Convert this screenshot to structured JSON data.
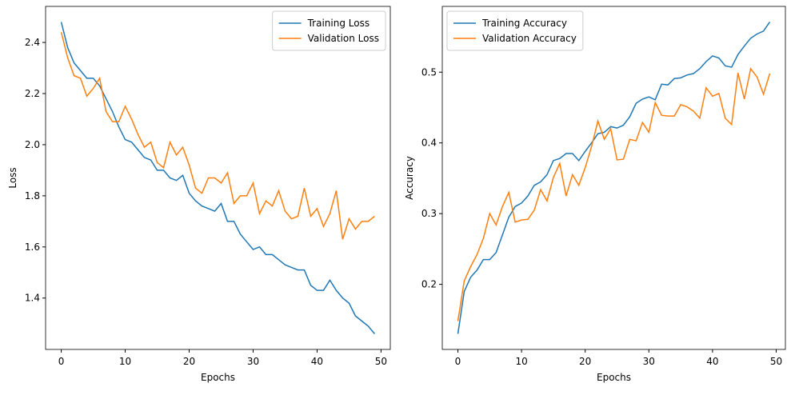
{
  "chart_data": [
    {
      "type": "line",
      "x_label": "Epochs",
      "y_label": "Loss",
      "x": [
        0,
        1,
        2,
        3,
        4,
        5,
        6,
        7,
        8,
        9,
        10,
        11,
        12,
        13,
        14,
        15,
        16,
        17,
        18,
        19,
        20,
        21,
        22,
        23,
        24,
        25,
        26,
        27,
        28,
        29,
        30,
        31,
        32,
        33,
        34,
        35,
        36,
        37,
        38,
        39,
        40,
        41,
        42,
        43,
        44,
        45,
        46,
        47,
        48,
        49
      ],
      "series": [
        {
          "name": "Training Loss",
          "color": "#1f77b4",
          "values": [
            2.48,
            2.38,
            2.32,
            2.29,
            2.26,
            2.26,
            2.23,
            2.18,
            2.13,
            2.07,
            2.02,
            2.01,
            1.98,
            1.95,
            1.94,
            1.9,
            1.9,
            1.87,
            1.86,
            1.88,
            1.81,
            1.78,
            1.76,
            1.75,
            1.74,
            1.77,
            1.7,
            1.7,
            1.65,
            1.62,
            1.59,
            1.6,
            1.57,
            1.57,
            1.55,
            1.53,
            1.52,
            1.51,
            1.51,
            1.45,
            1.43,
            1.43,
            1.47,
            1.43,
            1.4,
            1.38,
            1.33,
            1.31,
            1.29,
            1.26
          ]
        },
        {
          "name": "Validation Loss",
          "color": "#ff7f0e",
          "values": [
            2.44,
            2.34,
            2.27,
            2.26,
            2.19,
            2.22,
            2.26,
            2.13,
            2.09,
            2.09,
            2.15,
            2.1,
            2.04,
            1.99,
            2.01,
            1.93,
            1.91,
            2.01,
            1.96,
            1.99,
            1.92,
            1.83,
            1.81,
            1.87,
            1.87,
            1.85,
            1.89,
            1.77,
            1.8,
            1.8,
            1.85,
            1.73,
            1.78,
            1.76,
            1.82,
            1.74,
            1.71,
            1.72,
            1.83,
            1.72,
            1.75,
            1.68,
            1.73,
            1.82,
            1.63,
            1.71,
            1.67,
            1.7,
            1.7,
            1.72
          ]
        }
      ],
      "xlim": [
        -2.45,
        51.45
      ],
      "xticks": [
        0,
        10,
        20,
        30,
        40,
        50
      ],
      "ylim": [
        1.199,
        2.541
      ],
      "yticks": [
        1.4,
        1.6,
        1.8,
        {
          "value": 2,
          "label": "2.0"
        },
        2.2,
        2.4
      ],
      "legend": "upper right"
    },
    {
      "type": "line",
      "x_label": "Epochs",
      "y_label": "Accuracy",
      "x": [
        0,
        1,
        2,
        3,
        4,
        5,
        6,
        7,
        8,
        9,
        10,
        11,
        12,
        13,
        14,
        15,
        16,
        17,
        18,
        19,
        20,
        21,
        22,
        23,
        24,
        25,
        26,
        27,
        28,
        29,
        30,
        31,
        32,
        33,
        34,
        35,
        36,
        37,
        38,
        39,
        40,
        41,
        42,
        43,
        44,
        45,
        46,
        47,
        48,
        49
      ],
      "series": [
        {
          "name": "Training Accuracy",
          "color": "#1f77b4",
          "values": [
            0.13,
            0.19,
            0.21,
            0.22,
            0.235,
            0.235,
            0.245,
            0.27,
            0.295,
            0.31,
            0.315,
            0.325,
            0.34,
            0.345,
            0.355,
            0.375,
            0.378,
            0.385,
            0.385,
            0.375,
            0.388,
            0.4,
            0.413,
            0.415,
            0.423,
            0.421,
            0.425,
            0.437,
            0.456,
            0.462,
            0.465,
            0.461,
            0.483,
            0.482,
            0.491,
            0.492,
            0.496,
            0.498,
            0.505,
            0.515,
            0.523,
            0.52,
            0.509,
            0.507,
            0.525,
            0.537,
            0.548,
            0.554,
            0.558,
            0.571
          ]
        },
        {
          "name": "Validation Accuracy",
          "color": "#ff7f0e",
          "values": [
            0.148,
            0.205,
            0.225,
            0.242,
            0.265,
            0.3,
            0.284,
            0.31,
            0.33,
            0.288,
            0.291,
            0.292,
            0.305,
            0.334,
            0.318,
            0.351,
            0.371,
            0.325,
            0.355,
            0.34,
            0.365,
            0.395,
            0.431,
            0.405,
            0.42,
            0.376,
            0.377,
            0.405,
            0.403,
            0.429,
            0.415,
            0.457,
            0.439,
            0.438,
            0.438,
            0.454,
            0.451,
            0.445,
            0.435,
            0.478,
            0.466,
            0.47,
            0.435,
            0.426,
            0.499,
            0.462,
            0.505,
            0.493,
            0.469,
            0.498
          ]
        }
      ],
      "xlim": [
        -2.45,
        51.45
      ],
      "xticks": [
        0,
        10,
        20,
        30,
        40,
        50
      ],
      "ylim": [
        0.108,
        0.593
      ],
      "yticks": [
        0.2,
        0.3,
        0.4,
        0.5
      ],
      "legend": "upper left"
    }
  ]
}
